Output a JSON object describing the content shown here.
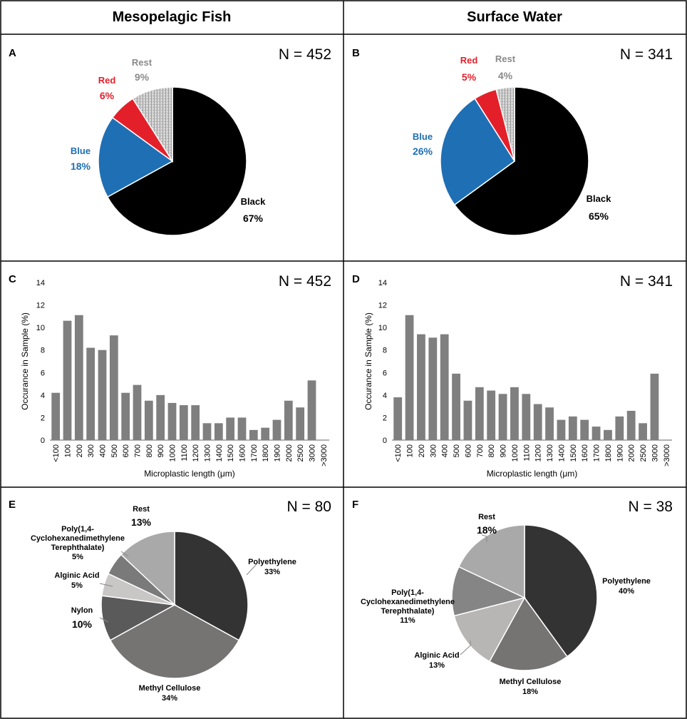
{
  "columns": {
    "left_title": "Mesopelagic Fish",
    "right_title": "Surface Water"
  },
  "colors": {
    "black": "#000000",
    "blue": "#1f6fb5",
    "red": "#e3202a",
    "rest": "#c8c8c8",
    "rest_label": "#8a8a8a",
    "bar": "#7f7f7f",
    "poly_dark": "#333333",
    "poly_mid": "#767373",
    "poly_light": "#b8b5b5",
    "poly_darkgray": "#5a5a5a",
    "poly_gray": "#858585",
    "poly_rest": "#a9a9a9"
  },
  "chart_data": [
    {
      "panel": "A",
      "type": "pie",
      "n_label": "N = 452",
      "slices": [
        {
          "label": "Black",
          "pct_label": "67%",
          "value": 67,
          "color": "#000000",
          "label_color": "#000000"
        },
        {
          "label": "Blue",
          "pct_label": "18%",
          "value": 18,
          "color": "#1f6fb5",
          "label_color": "#1f6fb5"
        },
        {
          "label": "Red",
          "pct_label": "6%",
          "value": 6,
          "color": "#e3202a",
          "label_color": "#e3202a"
        },
        {
          "label": "Rest",
          "pct_label": "9%",
          "value": 9,
          "color": "#c8c8c8",
          "label_color": "#8a8a8a"
        }
      ]
    },
    {
      "panel": "B",
      "type": "pie",
      "n_label": "N = 341",
      "slices": [
        {
          "label": "Black",
          "pct_label": "65%",
          "value": 65,
          "color": "#000000",
          "label_color": "#000000"
        },
        {
          "label": "Blue",
          "pct_label": "26%",
          "value": 26,
          "color": "#1f6fb5",
          "label_color": "#1f6fb5"
        },
        {
          "label": "Red",
          "pct_label": "5%",
          "value": 5,
          "color": "#e3202a",
          "label_color": "#e3202a"
        },
        {
          "label": "Rest",
          "pct_label": "4%",
          "value": 4,
          "color": "#c8c8c8",
          "label_color": "#8a8a8a"
        }
      ]
    },
    {
      "panel": "C",
      "type": "bar",
      "n_label": "N = 452",
      "ylabel": "Occurance in Sample (%)",
      "xlabel": "Microplastic length (μm)",
      "ylim": [
        0,
        14
      ],
      "yticks": [
        "0",
        "2",
        "4",
        "6",
        "8",
        "10",
        "12",
        "14"
      ],
      "categories": [
        "<100",
        "100",
        "200",
        "300",
        "400",
        "500",
        "600",
        "700",
        "800",
        "900",
        "1000",
        "1100",
        "1200",
        "1300",
        "1400",
        "1500",
        "1600",
        "1700",
        "1800",
        "1900",
        "2000",
        "2500",
        "3000",
        ">3000"
      ],
      "values": [
        4.2,
        10.6,
        11.1,
        8.2,
        8.0,
        9.3,
        4.2,
        4.9,
        3.5,
        4.0,
        3.3,
        3.1,
        3.1,
        1.5,
        1.5,
        2.0,
        2.0,
        0.9,
        1.1,
        1.8,
        3.5,
        2.9,
        5.3,
        0
      ]
    },
    {
      "panel": "D",
      "type": "bar",
      "n_label": "N = 341",
      "ylabel": "Occurance in Sample (%)",
      "xlabel": "Microplastic length (μm)",
      "ylim": [
        0,
        14
      ],
      "yticks": [
        "0",
        "2",
        "4",
        "6",
        "8",
        "10",
        "12",
        "14"
      ],
      "categories": [
        "<100",
        "100",
        "200",
        "300",
        "400",
        "500",
        "600",
        "700",
        "800",
        "900",
        "1000",
        "1100",
        "1200",
        "1300",
        "1400",
        "1500",
        "1600",
        "1700",
        "1800",
        "1900",
        "2000",
        "2500",
        "3000",
        ">3000"
      ],
      "values": [
        3.8,
        11.1,
        9.4,
        9.1,
        9.4,
        5.9,
        3.5,
        4.7,
        4.4,
        4.1,
        4.7,
        4.1,
        3.2,
        2.9,
        1.8,
        2.1,
        1.8,
        1.2,
        0.9,
        2.1,
        2.6,
        1.5,
        5.9,
        0
      ]
    },
    {
      "panel": "E",
      "type": "pie",
      "n_label": "N = 80",
      "slices": [
        {
          "label": "Polyethylene",
          "pct_label": "33%",
          "value": 33,
          "color": "#333333"
        },
        {
          "label": "Methyl Cellulose",
          "pct_label": "34%",
          "value": 34,
          "color": "#767373"
        },
        {
          "label": "Nylon",
          "pct_label": "10%",
          "value": 10,
          "color": "#5a5a5a"
        },
        {
          "label": "Alginic Acid",
          "pct_label": "5%",
          "value": 5,
          "color": "#c9c6c6"
        },
        {
          "label_lines": [
            "Poly(1,4-",
            "Cyclohexanedimethylene",
            "Terephthalate)"
          ],
          "pct_label": "5%",
          "value": 5,
          "color": "#7a7a7a"
        },
        {
          "label": "Rest",
          "pct_label": "13%",
          "value": 13,
          "color": "#a9a9a9"
        }
      ]
    },
    {
      "panel": "F",
      "type": "pie",
      "n_label": "N = 38",
      "slices": [
        {
          "label": "Polyethylene",
          "pct_label": "40%",
          "value": 40,
          "color": "#333333"
        },
        {
          "label": "Methyl Cellulose",
          "pct_label": "18%",
          "value": 18,
          "color": "#767373"
        },
        {
          "label": "Alginic Acid",
          "pct_label": "13%",
          "value": 13,
          "color": "#b8b5b5"
        },
        {
          "label_lines": [
            "Poly(1,4-",
            "Cyclohexanedimethylene",
            "Terephthalate)"
          ],
          "pct_label": "11%",
          "value": 11,
          "color": "#858585"
        },
        {
          "label": "Rest",
          "pct_label": "18%",
          "value": 18,
          "color": "#a9a9a9"
        }
      ]
    }
  ]
}
